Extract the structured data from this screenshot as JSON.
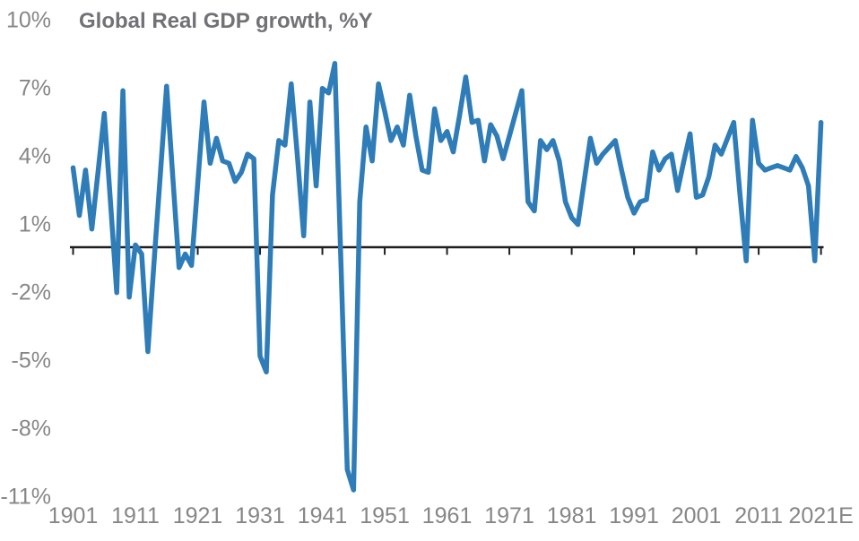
{
  "title": "Global Real GDP growth, %Y",
  "colors": {
    "line": "#2e7cb8",
    "axis": "#1f1f1f",
    "tick_label": "#868686",
    "title_text": "#717275",
    "background": "#ffffff"
  },
  "chart_data": {
    "type": "line",
    "title": "Global Real GDP growth, %Y",
    "xlabel": "",
    "ylabel": "",
    "grid": false,
    "legend": "none",
    "x_range": [
      1901,
      2021
    ],
    "ylim": [
      -12.5,
      10
    ],
    "y_tick_values": [
      10,
      7,
      4,
      1,
      -2,
      -5,
      -8,
      -11
    ],
    "y_tick_labels": [
      "10%",
      "7%",
      "4%",
      "1%",
      "-2%",
      "-5%",
      "-8%",
      "-11%"
    ],
    "x_tick_values": [
      1901,
      1911,
      1921,
      1931,
      1941,
      1951,
      1961,
      1971,
      1981,
      1991,
      2001,
      2011,
      2021
    ],
    "x_tick_labels": [
      "1901",
      "1911",
      "1921",
      "1931",
      "1941",
      "1951",
      "1961",
      "1971",
      "1981",
      "1991",
      "2001",
      "2011",
      "2021E"
    ],
    "series": [
      {
        "name": "Global Real GDP growth, %Y",
        "years": [
          1901,
          1902,
          1903,
          1904,
          1905,
          1906,
          1907,
          1908,
          1909,
          1910,
          1911,
          1912,
          1913,
          1914,
          1915,
          1916,
          1917,
          1918,
          1919,
          1920,
          1921,
          1922,
          1923,
          1924,
          1925,
          1926,
          1927,
          1928,
          1929,
          1930,
          1931,
          1932,
          1933,
          1934,
          1935,
          1936,
          1937,
          1938,
          1939,
          1940,
          1941,
          1942,
          1943,
          1944,
          1945,
          1946,
          1947,
          1948,
          1949,
          1950,
          1951,
          1952,
          1953,
          1954,
          1955,
          1956,
          1957,
          1958,
          1959,
          1960,
          1961,
          1962,
          1963,
          1964,
          1965,
          1966,
          1967,
          1968,
          1969,
          1970,
          1971,
          1972,
          1973,
          1974,
          1975,
          1976,
          1977,
          1978,
          1979,
          1980,
          1981,
          1982,
          1983,
          1984,
          1985,
          1986,
          1987,
          1988,
          1989,
          1990,
          1991,
          1992,
          1993,
          1994,
          1995,
          1996,
          1997,
          1998,
          1999,
          2000,
          2001,
          2002,
          2003,
          2004,
          2005,
          2006,
          2007,
          2008,
          2009,
          2010,
          2011,
          2012,
          2013,
          2014,
          2015,
          2016,
          2017,
          2018,
          2019,
          2020,
          2021
        ],
        "values": [
          3.5,
          1.4,
          3.4,
          0.8,
          3.3,
          5.9,
          2.0,
          -2.0,
          6.9,
          -2.2,
          0.1,
          -0.3,
          -4.6,
          -0.6,
          3.2,
          7.1,
          3.1,
          -0.9,
          -0.3,
          -0.8,
          2.8,
          6.4,
          3.7,
          4.8,
          3.8,
          3.7,
          2.9,
          3.3,
          4.1,
          3.9,
          -4.8,
          -5.5,
          2.3,
          4.7,
          4.5,
          7.2,
          4.0,
          0.5,
          6.4,
          2.7,
          7.0,
          6.8,
          8.1,
          -0.9,
          -9.8,
          -10.7,
          2.0,
          5.3,
          3.8,
          7.2,
          6.0,
          4.7,
          5.3,
          4.5,
          6.7,
          4.9,
          3.4,
          3.3,
          6.1,
          4.7,
          5.1,
          4.2,
          5.8,
          7.5,
          5.5,
          5.6,
          3.8,
          5.4,
          4.9,
          3.9,
          4.9,
          5.9,
          6.9,
          2.0,
          1.6,
          4.7,
          4.3,
          4.7,
          3.8,
          2.0,
          1.3,
          1.0,
          2.9,
          4.8,
          3.7,
          4.1,
          4.4,
          4.7,
          3.4,
          2.2,
          1.5,
          2.0,
          2.1,
          4.2,
          3.4,
          3.9,
          4.1,
          2.5,
          3.8,
          5.0,
          2.2,
          2.3,
          3.1,
          4.5,
          4.1,
          4.8,
          5.5,
          2.3,
          -0.6,
          5.6,
          3.7,
          3.4,
          3.5,
          3.6,
          3.5,
          3.4,
          4.0,
          3.5,
          2.7,
          -0.6,
          5.5
        ]
      }
    ]
  }
}
